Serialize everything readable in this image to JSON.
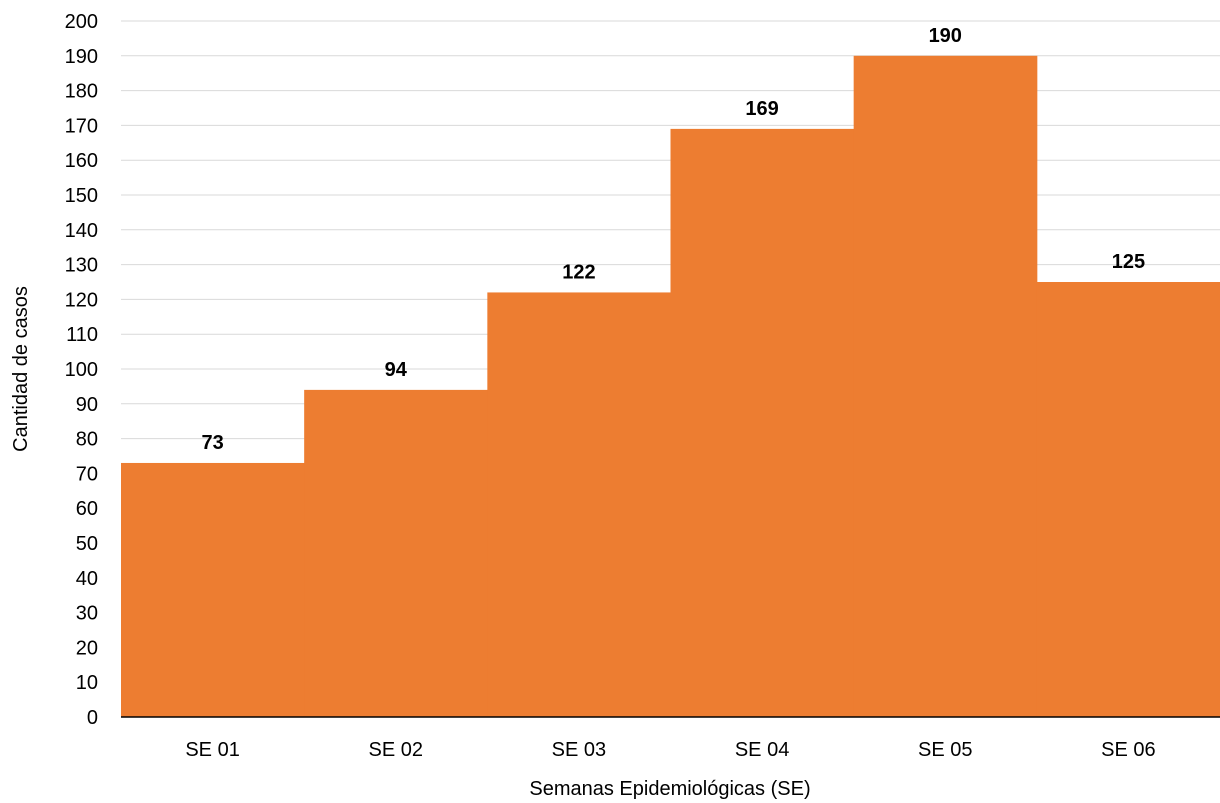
{
  "chart_data": {
    "type": "bar",
    "categories": [
      "SE 01",
      "SE 02",
      "SE 03",
      "SE 04",
      "SE 05",
      "SE 06"
    ],
    "values": [
      73,
      94,
      122,
      169,
      190,
      125
    ],
    "title": "",
    "xlabel": "Semanas Epidemiológicas (SE)",
    "ylabel": "Cantidad de casos",
    "ylim": [
      0,
      200
    ],
    "ytick_step": 10,
    "grid": true,
    "legend": "none",
    "bar_gap": 0,
    "colors": {
      "bar": "#ED7D31",
      "grid": "#D9D9D9",
      "axis": "#000000"
    }
  }
}
